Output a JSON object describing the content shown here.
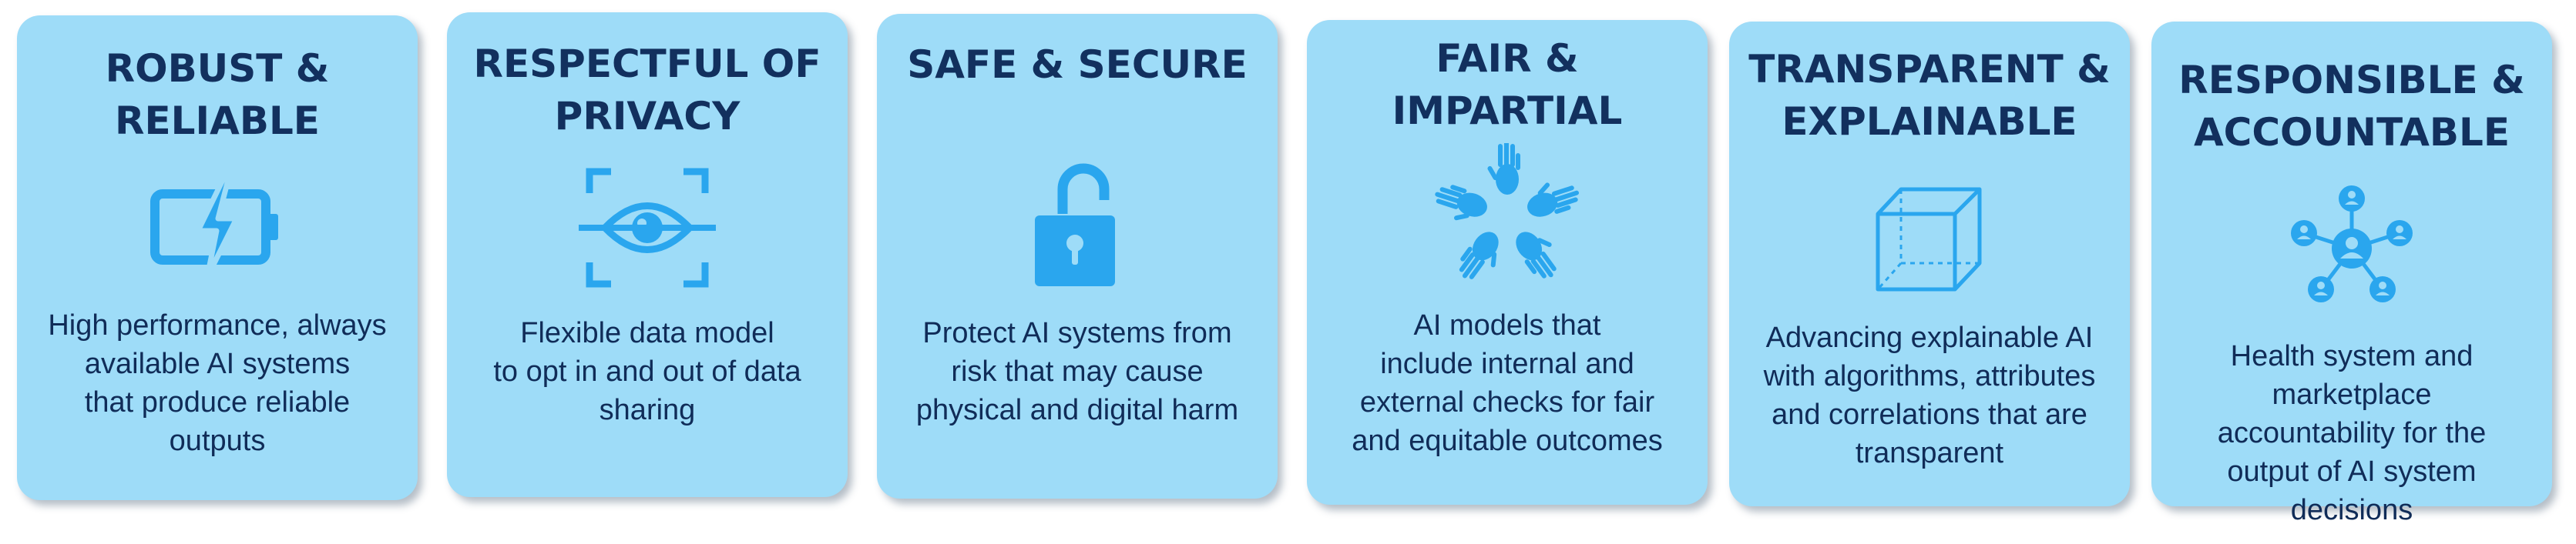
{
  "colors": {
    "card_background": "#9edcf8",
    "title_text": "#12305e",
    "body_text": "#102c58",
    "icon": "#2aa6ee"
  },
  "cards": [
    {
      "title": "ROBUST &\nRELIABLE",
      "icon": "battery-charging-icon",
      "description": "High performance, always\navailable AI systems\nthat produce reliable\noutputs"
    },
    {
      "title": "RESPECTFUL OF\nPRIVACY",
      "icon": "eye-scan-icon",
      "description": "Flexible data model\nto opt in and out of data\nsharing"
    },
    {
      "title": "SAFE & SECURE",
      "icon": "unlocked-padlock-icon",
      "description": "Protect AI systems from\nrisk that may cause\nphysical and digital harm"
    },
    {
      "title": "FAIR & IMPARTIAL",
      "icon": "joined-hands-icon",
      "description": "AI models that\ninclude internal and\nexternal checks  for fair\nand equitable outcomes"
    },
    {
      "title": "TRANSPARENT &\nEXPLAINABLE",
      "icon": "transparent-cube-icon",
      "description": "Advancing explainable AI\nwith algorithms, attributes\nand correlations that are\ntransparent"
    },
    {
      "title": "RESPONSIBLE &\nACCOUNTABLE",
      "icon": "people-network-icon",
      "description": "Health system and\nmarketplace\naccountability for the\noutput of AI system\ndecisions"
    }
  ]
}
